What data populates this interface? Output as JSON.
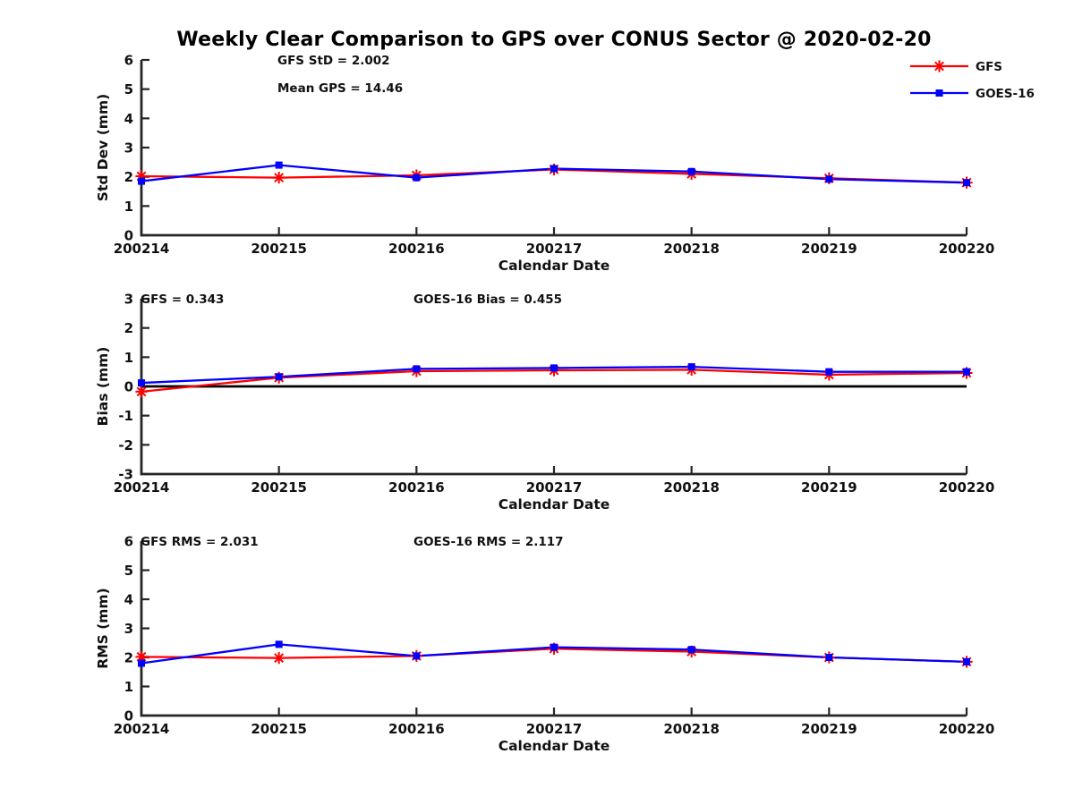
{
  "title": "Weekly Clear Comparison to GPS over CONUS Sector @ 2020-02-20",
  "colors": {
    "gfs": "#ff0000",
    "goes16": "#0000ff",
    "axis": "#262626",
    "text": "#111111",
    "zero_line": "#000000",
    "background": "#ffffff"
  },
  "legend": {
    "items": [
      {
        "label": "GFS",
        "color": "#ff0000",
        "marker": "asterisk"
      },
      {
        "label": "GOES-16",
        "color": "#0000ff",
        "marker": "square"
      }
    ],
    "position": "top-right"
  },
  "chart_data": [
    {
      "type": "line",
      "name": "std-dev-subplot",
      "ylabel": "Std Dev (mm)",
      "xlabel": "Calendar Date",
      "ylim": [
        0,
        6
      ],
      "yticks": [
        0,
        1,
        2,
        3,
        4,
        5,
        6
      ],
      "grid": false,
      "zero_line": false,
      "categories": [
        "200214",
        "200215",
        "200216",
        "200217",
        "200218",
        "200219",
        "200220"
      ],
      "series": [
        {
          "name": "GFS",
          "color": "#ff0000",
          "marker": "asterisk",
          "values": [
            2.02,
            1.97,
            2.05,
            2.25,
            2.1,
            1.95,
            1.8
          ]
        },
        {
          "name": "GOES-16",
          "color": "#0000ff",
          "marker": "square",
          "values": [
            1.85,
            2.4,
            1.97,
            2.28,
            2.18,
            1.92,
            1.8
          ]
        }
      ],
      "annotations": [
        {
          "text": "GFS StD = 2.002",
          "x": 310,
          "y": 72
        },
        {
          "text": "Mean GPS = 14.46",
          "x": 310,
          "y": 103
        }
      ]
    },
    {
      "type": "line",
      "name": "bias-subplot",
      "ylabel": "Bias (mm)",
      "xlabel": "Calendar Date",
      "ylim": [
        -3,
        3
      ],
      "yticks": [
        -3,
        -2,
        -1,
        0,
        1,
        2,
        3
      ],
      "grid": false,
      "zero_line": true,
      "categories": [
        "200214",
        "200215",
        "200216",
        "200217",
        "200218",
        "200219",
        "200220"
      ],
      "series": [
        {
          "name": "GFS",
          "color": "#ff0000",
          "marker": "asterisk",
          "values": [
            -0.18,
            0.3,
            0.52,
            0.55,
            0.57,
            0.4,
            0.46
          ]
        },
        {
          "name": "GOES-16",
          "color": "#0000ff",
          "marker": "square",
          "values": [
            0.12,
            0.33,
            0.6,
            0.63,
            0.67,
            0.5,
            0.5
          ]
        }
      ],
      "annotations": [
        {
          "text": "GFS = 0.343",
          "x": 157,
          "y": 339
        },
        {
          "text": "GOES-16 Bias  = 0.455",
          "x": 462,
          "y": 339
        }
      ]
    },
    {
      "type": "line",
      "name": "rms-subplot",
      "ylabel": "RMS (mm)",
      "xlabel": "Calendar Date",
      "ylim": [
        0,
        6
      ],
      "yticks": [
        0,
        1,
        2,
        3,
        4,
        5,
        6
      ],
      "grid": false,
      "zero_line": false,
      "categories": [
        "200214",
        "200215",
        "200216",
        "200217",
        "200218",
        "200219",
        "200220"
      ],
      "series": [
        {
          "name": "GFS",
          "color": "#ff0000",
          "marker": "asterisk",
          "values": [
            2.02,
            1.98,
            2.05,
            2.3,
            2.2,
            2.0,
            1.85
          ]
        },
        {
          "name": "GOES-16",
          "color": "#0000ff",
          "marker": "square",
          "values": [
            1.8,
            2.45,
            2.05,
            2.35,
            2.27,
            2.0,
            1.85
          ]
        }
      ],
      "annotations": [
        {
          "text": "GFS RMS = 2.031",
          "x": 157,
          "y": 610
        },
        {
          "text": "GOES-16 RMS = 2.117",
          "x": 462,
          "y": 610
        }
      ]
    }
  ]
}
